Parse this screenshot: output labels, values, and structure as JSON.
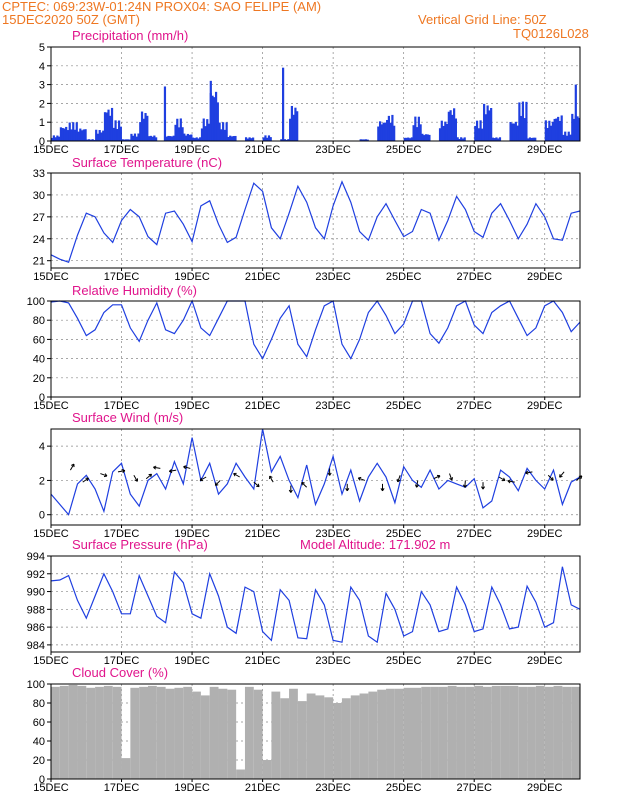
{
  "header": {
    "line1": "CPTEC:   069:23W-01:24N   PROX04: SAO FELIPE (AM)",
    "line2": "15DEC2020 50Z (GMT)",
    "grid_note": "Vertical Grid Line: 50Z",
    "code": "TQ0126L028"
  },
  "colors": {
    "header": "#ee7722",
    "title": "#e0158c",
    "line": "#1f3fe0",
    "cloud": "#b0b0b0",
    "frame": "#000000"
  },
  "x_ticks": [
    "15DEC",
    "17DEC",
    "19DEC",
    "21DEC",
    "23DEC",
    "25DEC",
    "27DEC",
    "29DEC"
  ],
  "chart_data": [
    {
      "type": "bar",
      "title": "Precipitation (mm/h)",
      "yticks": [
        "0",
        "1",
        "2",
        "3",
        "4",
        "5"
      ],
      "ylim": [
        0,
        5
      ],
      "x_range_days": [
        15,
        30
      ],
      "x": [
        15.0,
        15.25,
        15.5,
        15.75,
        16.0,
        16.25,
        16.5,
        16.75,
        17.0,
        17.25,
        17.5,
        17.75,
        18.0,
        18.25,
        18.5,
        18.75,
        19.0,
        19.25,
        19.5,
        19.75,
        20.0,
        20.25,
        20.5,
        20.75,
        21.0,
        21.25,
        21.5,
        21.75,
        22.0,
        22.25,
        22.5,
        22.75,
        23.0,
        23.25,
        23.5,
        23.75,
        24.0,
        24.25,
        24.5,
        24.75,
        25.0,
        25.25,
        25.5,
        25.75,
        26.0,
        26.25,
        26.5,
        26.75,
        27.0,
        27.25,
        27.5,
        27.75,
        28.0,
        28.25,
        28.5,
        28.75,
        29.0,
        29.25,
        29.5,
        29.75
      ],
      "values": [
        0.3,
        0.8,
        1.0,
        0.7,
        0.1,
        0.6,
        1.8,
        1.1,
        0.1,
        0.4,
        1.6,
        0.3,
        0.0,
        0.3,
        1.2,
        0.4,
        0.2,
        1.2,
        2.8,
        1.0,
        0.3,
        0.0,
        0.2,
        0.0,
        0.3,
        0.0,
        0.1,
        1.9,
        0.0,
        0.0,
        0.0,
        0.0,
        0.0,
        0.0,
        0.0,
        0.1,
        0.0,
        1.1,
        1.4,
        0.0,
        0.2,
        1.3,
        0.4,
        0.0,
        1.1,
        1.8,
        0.2,
        0.0,
        1.1,
        2.0,
        0.2,
        0.0,
        1.1,
        2.1,
        0.2,
        0.0,
        1.1,
        1.4,
        0.5,
        1.5
      ],
      "peaks": [
        {
          "x": 21.55,
          "y": 3.9
        },
        {
          "x": 19.5,
          "y": 3.2
        },
        {
          "x": 18.2,
          "y": 2.9
        },
        {
          "x": 29.85,
          "y": 3.0
        }
      ]
    },
    {
      "type": "line",
      "title": "Surface Temperature (nC)",
      "yticks": [
        "21",
        "24",
        "27",
        "30",
        "33"
      ],
      "ylim": [
        20,
        33
      ],
      "x_range_days": [
        15,
        30
      ],
      "x": [
        15.0,
        15.25,
        15.5,
        15.75,
        16.0,
        16.25,
        16.5,
        16.75,
        17.0,
        17.25,
        17.5,
        17.75,
        18.0,
        18.25,
        18.5,
        18.75,
        19.0,
        19.25,
        19.5,
        19.75,
        20.0,
        20.25,
        20.5,
        20.75,
        21.0,
        21.25,
        21.5,
        21.75,
        22.0,
        22.25,
        22.5,
        22.75,
        23.0,
        23.25,
        23.5,
        23.75,
        24.0,
        24.25,
        24.5,
        24.75,
        25.0,
        25.25,
        25.5,
        25.75,
        26.0,
        26.25,
        26.5,
        26.75,
        27.0,
        27.25,
        27.5,
        27.75,
        28.0,
        28.25,
        28.5,
        28.75,
        29.0,
        29.25,
        29.5,
        29.75,
        30.0
      ],
      "values": [
        21.8,
        21.2,
        20.8,
        24.5,
        27.5,
        27.0,
        24.8,
        23.5,
        26.5,
        28.0,
        27.0,
        24.3,
        23.2,
        27.5,
        27.8,
        26.0,
        23.6,
        28.5,
        29.2,
        26.0,
        23.5,
        24.2,
        28.0,
        31.6,
        30.5,
        25.5,
        24.0,
        27.5,
        31.2,
        29.0,
        25.5,
        24.0,
        28.5,
        31.8,
        29.0,
        25.0,
        23.8,
        27.0,
        28.8,
        26.5,
        24.3,
        25.0,
        28.0,
        27.5,
        23.8,
        26.5,
        29.8,
        28.0,
        25.0,
        24.2,
        27.5,
        28.8,
        26.5,
        24.0,
        26.0,
        28.8,
        27.0,
        24.0,
        23.8,
        27.5,
        27.8
      ]
    },
    {
      "type": "line",
      "title": "Relative Humidity (%)",
      "yticks": [
        "0",
        "20",
        "40",
        "60",
        "80",
        "100"
      ],
      "ylim": [
        0,
        100
      ],
      "x_range_days": [
        15,
        30
      ],
      "x": [
        15.0,
        15.25,
        15.5,
        15.75,
        16.0,
        16.25,
        16.5,
        16.75,
        17.0,
        17.25,
        17.5,
        17.75,
        18.0,
        18.25,
        18.5,
        18.75,
        19.0,
        19.25,
        19.5,
        19.75,
        20.0,
        20.25,
        20.5,
        20.75,
        21.0,
        21.25,
        21.5,
        21.75,
        22.0,
        22.25,
        22.5,
        22.75,
        23.0,
        23.25,
        23.5,
        23.75,
        24.0,
        24.25,
        24.5,
        24.75,
        25.0,
        25.25,
        25.5,
        25.75,
        26.0,
        26.25,
        26.5,
        26.75,
        27.0,
        27.25,
        27.5,
        27.75,
        28.0,
        28.25,
        28.5,
        28.75,
        29.0,
        29.25,
        29.5,
        29.75,
        30.0
      ],
      "values": [
        99,
        100,
        98,
        82,
        64,
        70,
        88,
        96,
        96,
        72,
        58,
        80,
        98,
        70,
        66,
        80,
        100,
        72,
        64,
        82,
        100,
        100,
        100,
        55,
        40,
        60,
        82,
        95,
        55,
        42,
        70,
        95,
        100,
        55,
        40,
        60,
        88,
        100,
        85,
        66,
        76,
        100,
        100,
        66,
        56,
        72,
        95,
        100,
        75,
        66,
        88,
        95,
        100,
        82,
        64,
        72,
        95,
        100,
        88,
        68,
        78
      ]
    },
    {
      "type": "line",
      "title": "Surface Wind (m/s)",
      "yticks": [
        "0",
        "2",
        "4"
      ],
      "ylim": [
        -0.6,
        5.0
      ],
      "x_range_days": [
        15,
        30
      ],
      "x": [
        15.0,
        15.25,
        15.5,
        15.75,
        16.0,
        16.25,
        16.5,
        16.75,
        17.0,
        17.25,
        17.5,
        17.75,
        18.0,
        18.25,
        18.5,
        18.75,
        19.0,
        19.25,
        19.5,
        19.75,
        20.0,
        20.25,
        20.5,
        20.75,
        21.0,
        21.25,
        21.5,
        21.75,
        22.0,
        22.25,
        22.5,
        22.75,
        23.0,
        23.25,
        23.5,
        23.75,
        24.0,
        24.25,
        24.5,
        24.75,
        25.0,
        25.25,
        25.5,
        25.75,
        26.0,
        26.25,
        26.5,
        26.75,
        27.0,
        27.25,
        27.5,
        27.75,
        28.0,
        28.25,
        28.5,
        28.75,
        29.0,
        29.25,
        29.5,
        29.75,
        30.0
      ],
      "values": [
        1.2,
        0.6,
        0.0,
        1.8,
        2.3,
        1.5,
        0.2,
        2.5,
        3.0,
        1.2,
        0.5,
        2.0,
        2.4,
        1.5,
        3.1,
        1.8,
        4.5,
        2.0,
        3.0,
        1.2,
        1.8,
        3.0,
        2.2,
        1.5,
        5.0,
        2.5,
        3.4,
        2.0,
        1.0,
        2.9,
        0.6,
        1.8,
        3.4,
        1.2,
        2.6,
        0.8,
        2.2,
        3.0,
        2.2,
        0.7,
        2.8,
        2.0,
        1.6,
        2.6,
        1.5,
        2.0,
        1.8,
        1.6,
        2.1,
        0.4,
        0.8,
        2.6,
        2.2,
        1.4,
        2.7,
        2.0,
        1.5,
        2.6,
        0.6,
        1.9,
        2.2
      ],
      "arrows": [
        {
          "day": 15.55,
          "speed": 2.6,
          "dir_deg": 60
        },
        {
          "day": 15.9,
          "speed": 1.9,
          "dir_deg": 35
        },
        {
          "day": 16.4,
          "speed": 2.4,
          "dir_deg": -20
        },
        {
          "day": 16.9,
          "speed": 2.5,
          "dir_deg": 10
        },
        {
          "day": 17.35,
          "speed": 2.3,
          "dir_deg": -60
        },
        {
          "day": 17.7,
          "speed": 2.1,
          "dir_deg": 40
        },
        {
          "day": 18.1,
          "speed": 2.7,
          "dir_deg": 170
        },
        {
          "day": 18.55,
          "speed": 2.6,
          "dir_deg": -170
        },
        {
          "day": 18.95,
          "speed": 2.7,
          "dir_deg": 165
        },
        {
          "day": 19.4,
          "speed": 2.2,
          "dir_deg": -150
        },
        {
          "day": 19.8,
          "speed": 2.0,
          "dir_deg": -135
        },
        {
          "day": 20.35,
          "speed": 2.2,
          "dir_deg": 150
        },
        {
          "day": 20.75,
          "speed": 1.9,
          "dir_deg": -40
        },
        {
          "day": 21.3,
          "speed": 1.9,
          "dir_deg": 120
        },
        {
          "day": 21.8,
          "speed": 1.7,
          "dir_deg": -90
        },
        {
          "day": 22.25,
          "speed": 1.6,
          "dir_deg": 135
        },
        {
          "day": 22.9,
          "speed": 2.7,
          "dir_deg": -90
        },
        {
          "day": 23.4,
          "speed": 1.8,
          "dir_deg": -90
        },
        {
          "day": 23.9,
          "speed": 2.0,
          "dir_deg": 160
        },
        {
          "day": 24.4,
          "speed": 1.8,
          "dir_deg": -90
        },
        {
          "day": 24.9,
          "speed": 2.3,
          "dir_deg": -110
        },
        {
          "day": 25.4,
          "speed": 2.0,
          "dir_deg": -100
        },
        {
          "day": 25.85,
          "speed": 2.1,
          "dir_deg": 25
        },
        {
          "day": 26.3,
          "speed": 2.4,
          "dir_deg": -70
        },
        {
          "day": 26.75,
          "speed": 2.0,
          "dir_deg": -95
        },
        {
          "day": 27.25,
          "speed": 1.9,
          "dir_deg": -90
        },
        {
          "day": 27.7,
          "speed": 2.2,
          "dir_deg": -30
        },
        {
          "day": 28.15,
          "speed": 1.9,
          "dir_deg": 170
        },
        {
          "day": 28.65,
          "speed": 2.5,
          "dir_deg": -170
        },
        {
          "day": 29.1,
          "speed": 2.3,
          "dir_deg": -45
        },
        {
          "day": 29.55,
          "speed": 2.5,
          "dir_deg": -130
        },
        {
          "day": 29.9,
          "speed": 2.0,
          "dir_deg": 40
        }
      ]
    },
    {
      "type": "line",
      "title": "Surface Pressure (hPa)",
      "subtitle": "Model Altitude: 171.902 m",
      "yticks": [
        "984",
        "986",
        "988",
        "990",
        "992",
        "994"
      ],
      "ylim": [
        983.2,
        994
      ],
      "x_range_days": [
        15,
        30
      ],
      "x": [
        15.0,
        15.25,
        15.5,
        15.75,
        16.0,
        16.25,
        16.5,
        16.75,
        17.0,
        17.25,
        17.5,
        17.75,
        18.0,
        18.25,
        18.5,
        18.75,
        19.0,
        19.25,
        19.5,
        19.75,
        20.0,
        20.25,
        20.5,
        20.75,
        21.0,
        21.25,
        21.5,
        21.75,
        22.0,
        22.25,
        22.5,
        22.75,
        23.0,
        23.25,
        23.5,
        23.75,
        24.0,
        24.25,
        24.5,
        24.75,
        25.0,
        25.25,
        25.5,
        25.75,
        26.0,
        26.25,
        26.5,
        26.75,
        27.0,
        27.25,
        27.5,
        27.75,
        28.0,
        28.25,
        28.5,
        28.75,
        29.0,
        29.25,
        29.5,
        29.75,
        30.0
      ],
      "values": [
        991.2,
        991.3,
        991.8,
        989.0,
        987.0,
        989.5,
        992.0,
        990.0,
        987.5,
        987.5,
        991.8,
        989.5,
        987.2,
        986.5,
        992.2,
        991.0,
        987.5,
        987.0,
        992.0,
        989.5,
        986.0,
        985.3,
        990.5,
        990.0,
        985.5,
        984.5,
        990.2,
        989.0,
        984.8,
        984.7,
        990.2,
        988.5,
        984.5,
        984.3,
        990.5,
        989.0,
        985.0,
        984.3,
        989.8,
        988.0,
        985.0,
        985.5,
        990.0,
        988.5,
        985.5,
        985.8,
        990.5,
        988.5,
        985.5,
        985.8,
        990.5,
        988.5,
        985.8,
        986.0,
        990.6,
        988.8,
        986.0,
        986.5,
        992.8,
        988.5,
        988.0
      ]
    },
    {
      "type": "area",
      "title": "Cloud Cover (%)",
      "yticks": [
        "0",
        "20",
        "40",
        "60",
        "80",
        "100"
      ],
      "ylim": [
        0,
        100
      ],
      "x_range_days": [
        15,
        30
      ],
      "x": [
        15.0,
        15.25,
        15.5,
        15.75,
        16.0,
        16.25,
        16.5,
        16.75,
        17.0,
        17.25,
        17.5,
        17.75,
        18.0,
        18.25,
        18.5,
        18.75,
        19.0,
        19.25,
        19.5,
        19.75,
        20.0,
        20.25,
        20.5,
        20.75,
        21.0,
        21.25,
        21.5,
        21.75,
        22.0,
        22.25,
        22.5,
        22.75,
        23.0,
        23.25,
        23.5,
        23.75,
        24.0,
        24.25,
        24.5,
        24.75,
        25.0,
        25.25,
        25.5,
        25.75,
        26.0,
        26.25,
        26.5,
        26.75,
        27.0,
        27.25,
        27.5,
        27.75,
        28.0,
        28.25,
        28.5,
        28.75,
        29.0,
        29.25,
        29.5,
        29.75,
        30.0
      ],
      "values": [
        97,
        98,
        99,
        98,
        96,
        97,
        98,
        97,
        22,
        96,
        97,
        98,
        97,
        95,
        96,
        97,
        92,
        88,
        97,
        95,
        94,
        10,
        97,
        94,
        20,
        92,
        85,
        95,
        82,
        90,
        88,
        86,
        80,
        85,
        88,
        90,
        92,
        94,
        95,
        95,
        96,
        96,
        97,
        97,
        97,
        98,
        97,
        97,
        98,
        97,
        98,
        98,
        98,
        97,
        97,
        98,
        97,
        98,
        97,
        97,
        5
      ]
    }
  ]
}
